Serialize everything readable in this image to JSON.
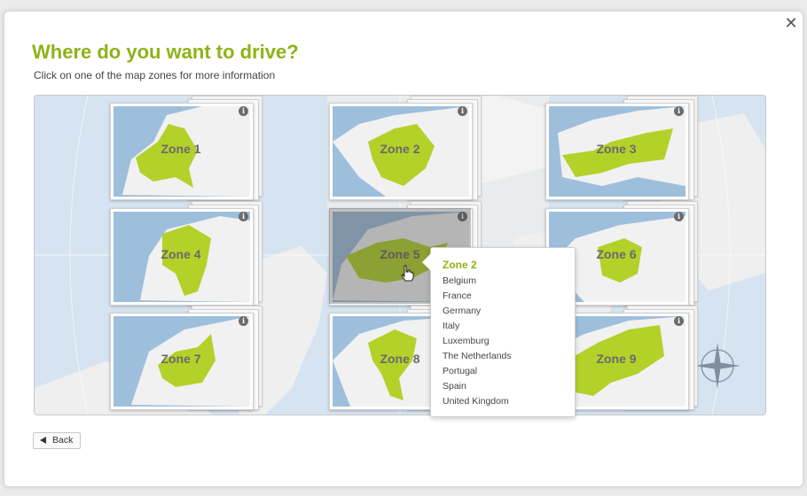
{
  "dialog": {
    "title": "Where do you want to drive?",
    "subtitle": "Click on one of the map zones for more information",
    "close_icon": "close-icon"
  },
  "zones": [
    {
      "label": "Zone 1"
    },
    {
      "label": "Zone 2"
    },
    {
      "label": "Zone 3"
    },
    {
      "label": "Zone 4"
    },
    {
      "label": "Zone 5",
      "hovered": true
    },
    {
      "label": "Zone 6"
    },
    {
      "label": "Zone 7"
    },
    {
      "label": "Zone 8"
    },
    {
      "label": "Zone 9"
    }
  ],
  "popup": {
    "title": "Zone 2",
    "countries": [
      "Belgium",
      "France",
      "Germany",
      "Italy",
      "Luxemburg",
      "The Netherlands",
      "Portugal",
      "Spain",
      "United Kingdom"
    ]
  },
  "footer": {
    "back_label": "Back",
    "back_icon": "arrow-left-icon"
  },
  "colors": {
    "accent": "#8db316",
    "zone_fill": "#b4d12a",
    "sea": "#9ebfdc",
    "land": "#f1f1f1"
  }
}
